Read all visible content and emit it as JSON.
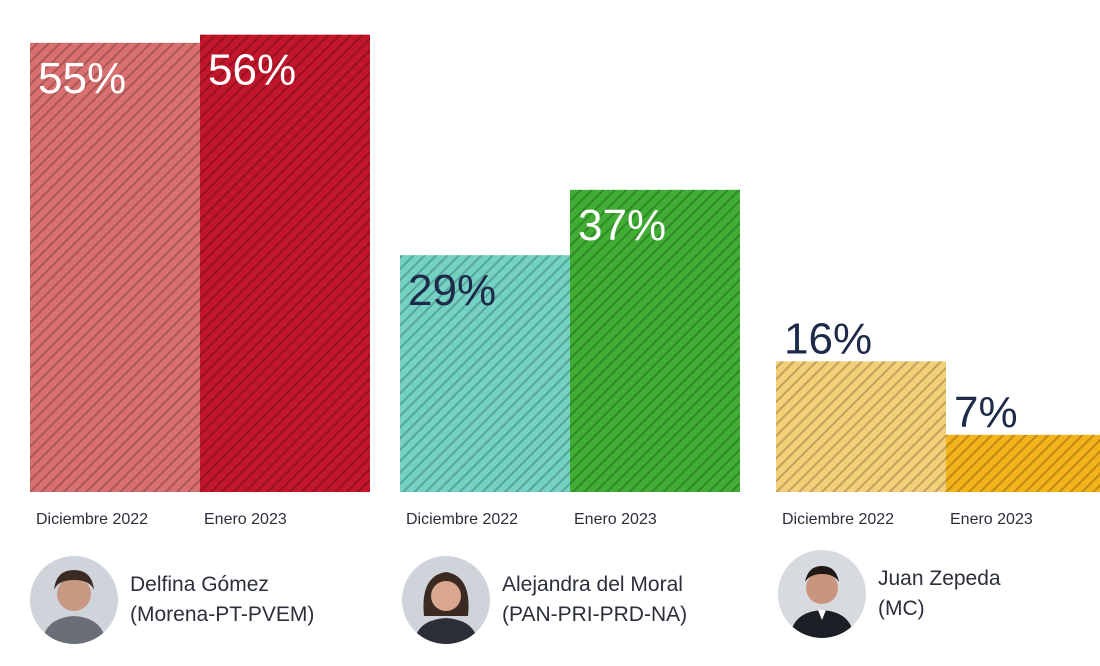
{
  "chart_data": {
    "type": "bar",
    "ylim": [
      0,
      60
    ],
    "groups": [
      {
        "candidate": "Delfina Gómez",
        "party": "(Morena-PT-PVEM)",
        "bars": [
          {
            "category": "Diciembre 2022",
            "value": 55,
            "label": "55%",
            "color": "#d9706f",
            "label_color": "#ffffff"
          },
          {
            "category": "Enero 2023",
            "value": 56,
            "label": "56%",
            "color": "#c2162a",
            "label_color": "#ffffff"
          }
        ]
      },
      {
        "candidate": "Alejandra del Moral",
        "party": "(PAN-PRI-PRD-NA)",
        "bars": [
          {
            "category": "Diciembre 2022",
            "value": 29,
            "label": "29%",
            "color": "#73d2c3",
            "label_color": "#1e2a4a"
          },
          {
            "category": "Enero 2023",
            "value": 37,
            "label": "37%",
            "color": "#3fae33",
            "label_color": "#ffffff"
          }
        ]
      },
      {
        "candidate": "Juan Zepeda",
        "party": "(MC)",
        "bars": [
          {
            "category": "Diciembre 2022",
            "value": 16,
            "label": "16%",
            "color": "#f3cf78",
            "label_color": "#1e2a4a"
          },
          {
            "category": "Enero 2023",
            "value": 7,
            "label": "7%",
            "color": "#f4b21b",
            "label_color": "#1e2a4a"
          }
        ]
      }
    ]
  },
  "icons": {
    "avatar_1": "person-photo-icon",
    "avatar_2": "person-photo-icon",
    "avatar_3": "person-photo-icon"
  }
}
